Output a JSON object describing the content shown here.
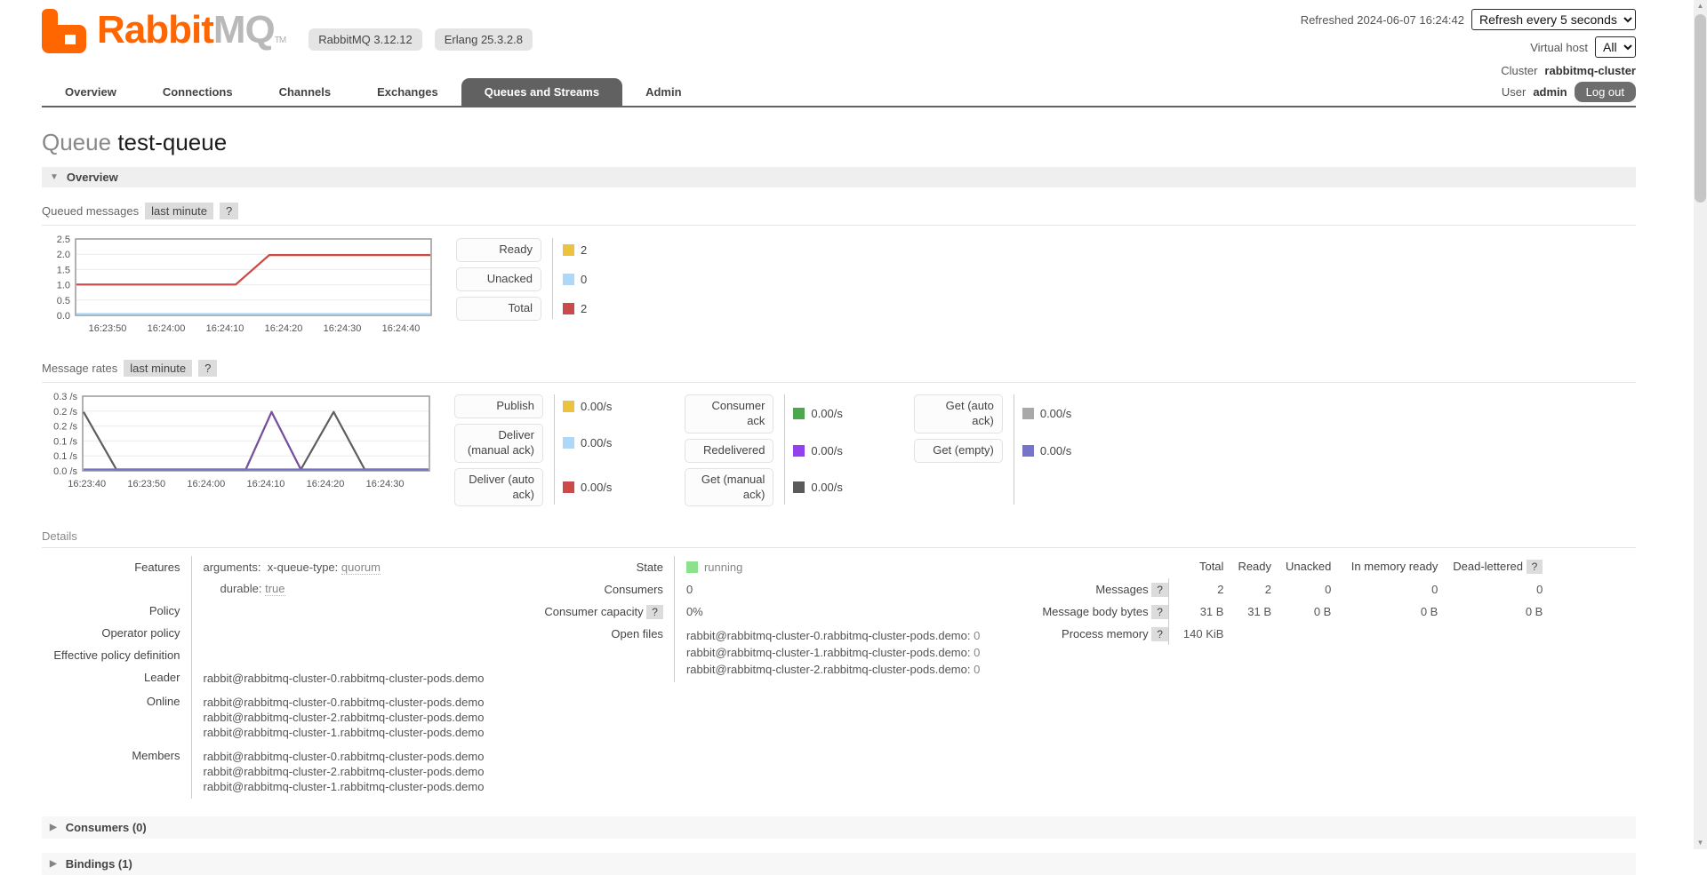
{
  "header": {
    "logo_rabbit": "Rabbit",
    "logo_mq": "MQ",
    "logo_tm": "TM",
    "badges": [
      "RabbitMQ 3.12.12",
      "Erlang 25.3.2.8"
    ],
    "refreshed": "Refreshed 2024-06-07 16:24:42",
    "refresh_option": "Refresh every 5 seconds",
    "virtual_host_label": "Virtual host",
    "virtual_host_option": "All",
    "cluster_label": "Cluster",
    "cluster_name": "rabbitmq-cluster",
    "user_label": "User",
    "username": "admin",
    "logout": "Log out"
  },
  "tabs": [
    {
      "label": "Overview",
      "selected": false
    },
    {
      "label": "Connections",
      "selected": false
    },
    {
      "label": "Channels",
      "selected": false
    },
    {
      "label": "Exchanges",
      "selected": false
    },
    {
      "label": "Queues and Streams",
      "selected": true
    },
    {
      "label": "Admin",
      "selected": false
    }
  ],
  "page": {
    "title_prefix": "Queue",
    "title_name": "test-queue"
  },
  "overview_section": {
    "title": "Overview"
  },
  "queued_messages": {
    "label": "Queued messages",
    "range": "last minute",
    "help": "?",
    "legend": [
      {
        "label": "Ready",
        "color": "#edc240",
        "value": "2"
      },
      {
        "label": "Unacked",
        "color": "#afd8f8",
        "value": "0"
      },
      {
        "label": "Total",
        "color": "#cb4b4b",
        "value": "2"
      }
    ]
  },
  "message_rates": {
    "label": "Message rates",
    "range": "last minute",
    "help": "?",
    "legend_cols": [
      [
        {
          "label": "Publish",
          "color": "#edc240",
          "value": "0.00/s"
        },
        {
          "label": "Deliver (manual ack)",
          "color": "#afd8f8",
          "value": "0.00/s"
        },
        {
          "label": "Deliver (auto ack)",
          "color": "#cb4b4b",
          "value": "0.00/s"
        }
      ],
      [
        {
          "label": "Consumer ack",
          "color": "#4da74d",
          "value": "0.00/s"
        },
        {
          "label": "Redelivered",
          "color": "#9440ed",
          "value": "0.00/s"
        },
        {
          "label": "Get (manual ack)",
          "color": "#5a5a5a",
          "value": "0.00/s"
        }
      ],
      [
        {
          "label": "Get (auto ack)",
          "color": "#a9a9a9",
          "value": "0.00/s"
        },
        {
          "label": "Get (empty)",
          "color": "#7574c9",
          "value": "0.00/s"
        }
      ]
    ]
  },
  "chart_data": [
    {
      "type": "line",
      "title": "Queued messages",
      "ylim": [
        0,
        2.5
      ],
      "y_ticks": [
        "2.5",
        "2.0",
        "1.5",
        "1.0",
        "0.5",
        "0.0"
      ],
      "x_ticks": [
        "16:23:50",
        "16:24:00",
        "16:24:10",
        "16:24:20",
        "16:24:30",
        "16:24:40"
      ],
      "x_tick_pos": [
        0.09,
        0.255,
        0.42,
        0.585,
        0.75,
        0.915
      ],
      "grid": true,
      "series": [
        {
          "name": "Ready",
          "color": "#edc240",
          "points": [
            [
              0,
              1
            ],
            [
              0.45,
              1
            ],
            [
              0.545,
              2
            ],
            [
              1,
              2
            ]
          ]
        },
        {
          "name": "Unacked",
          "color": "#afd8f8",
          "points": [
            [
              0,
              0
            ],
            [
              1,
              0
            ]
          ]
        },
        {
          "name": "Total",
          "color": "#cb4b4b",
          "points": [
            [
              0,
              1
            ],
            [
              0.45,
              1
            ],
            [
              0.545,
              2
            ],
            [
              1,
              2
            ]
          ]
        }
      ]
    },
    {
      "type": "line",
      "title": "Message rates",
      "ylim": [
        0,
        0.25
      ],
      "y_ticks": [
        "0.3 /s",
        "0.2 /s",
        "0.2 /s",
        "0.1 /s",
        "0.1 /s",
        "0.0 /s"
      ],
      "x_ticks": [
        "16:23:40",
        "16:23:50",
        "16:24:00",
        "16:24:10",
        "16:24:20",
        "16:24:30"
      ],
      "x_tick_pos": [
        0.012,
        0.184,
        0.356,
        0.528,
        0.7,
        0.872
      ],
      "grid": true,
      "series": [
        {
          "name": "Get (manual ack)",
          "color": "#5e5e5e",
          "points": [
            [
              0,
              0.2
            ],
            [
              0.095,
              0
            ],
            [
              0.47,
              0
            ],
            [
              0.545,
              0.2
            ],
            [
              0.63,
              0
            ],
            [
              0.725,
              0.2
            ],
            [
              0.815,
              0
            ],
            [
              1,
              0
            ]
          ]
        },
        {
          "name": "Redelivered",
          "color": "#9440ed",
          "opacity": 0.45,
          "points": [
            [
              0.47,
              0
            ],
            [
              0.545,
              0.2
            ],
            [
              0.63,
              0
            ]
          ]
        },
        {
          "name": "Get (empty)",
          "color": "#7574c9",
          "points": [
            [
              0,
              0
            ],
            [
              1,
              0
            ]
          ]
        }
      ]
    }
  ],
  "details": {
    "title": "Details",
    "features_label": "Features",
    "arg_key": "arguments:",
    "arg_name": "x-queue-type:",
    "arg_value": "quorum",
    "durable_key": "durable:",
    "durable_value": "true",
    "policy_label": "Policy",
    "operator_policy_label": "Operator policy",
    "effective_policy_label": "Effective policy definition",
    "leader_label": "Leader",
    "leader_value": "rabbit@rabbitmq-cluster-0.rabbitmq-cluster-pods.demo",
    "online_label": "Online",
    "online_values": [
      "rabbit@rabbitmq-cluster-0.rabbitmq-cluster-pods.demo",
      "rabbit@rabbitmq-cluster-2.rabbitmq-cluster-pods.demo",
      "rabbit@rabbitmq-cluster-1.rabbitmq-cluster-pods.demo"
    ],
    "members_label": "Members",
    "members_values": [
      "rabbit@rabbitmq-cluster-0.rabbitmq-cluster-pods.demo",
      "rabbit@rabbitmq-cluster-2.rabbitmq-cluster-pods.demo",
      "rabbit@rabbitmq-cluster-1.rabbitmq-cluster-pods.demo"
    ],
    "state_label": "State",
    "state_value": "running",
    "state_color": "#8ce28c",
    "consumers_label": "Consumers",
    "consumers_value": "0",
    "consumer_capacity_label": "Consumer capacity",
    "consumer_capacity_help": "?",
    "consumer_capacity_value": "0%",
    "open_files_label": "Open files",
    "open_files": [
      {
        "node": "rabbit@rabbitmq-cluster-0.rabbitmq-cluster-pods.demo:",
        "value": "0"
      },
      {
        "node": "rabbit@rabbitmq-cluster-1.rabbitmq-cluster-pods.demo:",
        "value": "0"
      },
      {
        "node": "rabbit@rabbitmq-cluster-2.rabbitmq-cluster-pods.demo:",
        "value": "0"
      }
    ],
    "stats": {
      "headers": [
        "Total",
        "Ready",
        "Unacked",
        "In memory ready",
        "Dead-lettered"
      ],
      "dead_lettered_help": "?",
      "rows": [
        {
          "label": "Messages",
          "help": "?",
          "values": [
            "2",
            "2",
            "0",
            "0",
            "0"
          ]
        },
        {
          "label": "Message body bytes",
          "help": "?",
          "values": [
            "31 B",
            "31 B",
            "0 B",
            "0 B",
            "0 B"
          ]
        },
        {
          "label": "Process memory",
          "help": "?",
          "values": [
            "140 KiB",
            "",
            "",
            "",
            ""
          ]
        }
      ]
    }
  },
  "folds": [
    {
      "title": "Consumers (0)"
    },
    {
      "title": "Bindings (1)"
    }
  ]
}
